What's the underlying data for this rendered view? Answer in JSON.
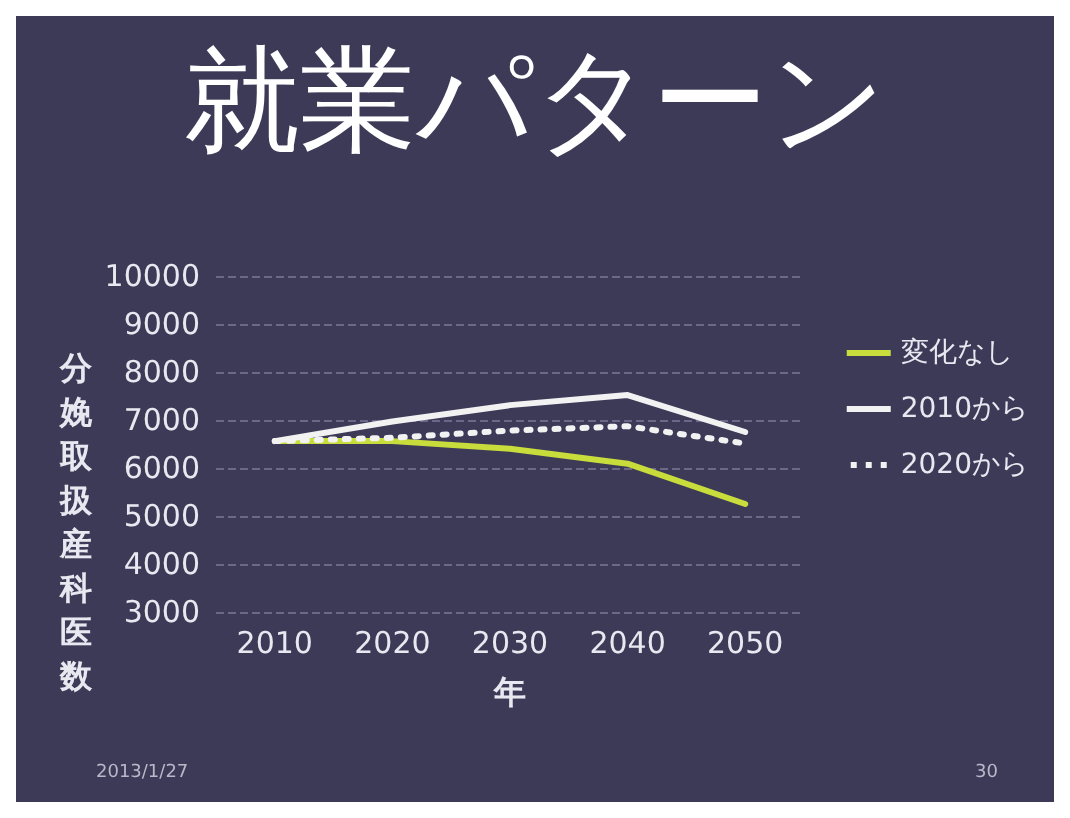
{
  "chart_data": {
    "type": "line",
    "title": "就業パターン",
    "xlabel": "年",
    "ylabel": "分娩取扱産科医数",
    "categories": [
      "2010",
      "2020",
      "2030",
      "2040",
      "2050"
    ],
    "series": [
      {
        "name": "変化なし",
        "color": "#c8dc3c",
        "values": [
          6560,
          6560,
          6400,
          6090,
          5250
        ],
        "line_style": "solid"
      },
      {
        "name": "2010から",
        "color": "#f2f2f2",
        "values": [
          6560,
          6970,
          7310,
          7520,
          6750
        ],
        "line_style": "solid"
      },
      {
        "name": "2020から",
        "color": "#f2f2f2",
        "values": [
          6560,
          6630,
          6780,
          6870,
          6510
        ],
        "line_style": "dotted"
      }
    ],
    "ylim": [
      3000,
      10000
    ],
    "yticks": [
      3000,
      4000,
      5000,
      6000,
      7000,
      8000,
      9000,
      10000
    ],
    "grid": "y",
    "legend": "right",
    "marker": "none",
    "annotations": [
      "2013/1/27",
      "30"
    ]
  }
}
